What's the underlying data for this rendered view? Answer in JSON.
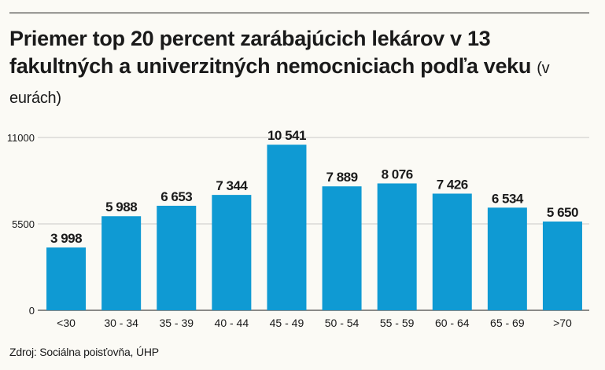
{
  "title": "Priemer top 20 percent zarábajúcich lekárov v 13 fakultných a univerzitných nemocniciach podľa veku",
  "unit_note": "(v eurách)",
  "source": "Zdroj: Sociálna poisťovňa, ÚHP",
  "colors": {
    "bar": "#0f9ad3",
    "text": "#1a1a1a",
    "grid": "#c8c8c8",
    "background": "#fbfaf5"
  },
  "chart_data": {
    "type": "bar",
    "categories": [
      "<30",
      "30 - 34",
      "35 - 39",
      "40 - 44",
      "45 - 49",
      "50 - 54",
      "55 - 59",
      "60 - 64",
      "65 - 69",
      ">70"
    ],
    "values": [
      3998,
      5988,
      6653,
      7344,
      10541,
      7889,
      8076,
      7426,
      6534,
      5650
    ],
    "value_labels": [
      "3 998",
      "5 988",
      "6 653",
      "7 344",
      "10 541",
      "7 889",
      "8 076",
      "7 426",
      "6 534",
      "5 650"
    ],
    "yticks": [
      0,
      5500,
      11000
    ],
    "ytick_labels": [
      "0",
      "5500",
      "11000"
    ],
    "ylim": [
      0,
      11000
    ],
    "xlabel": "",
    "ylabel": "",
    "grid": true,
    "legend": "none"
  }
}
